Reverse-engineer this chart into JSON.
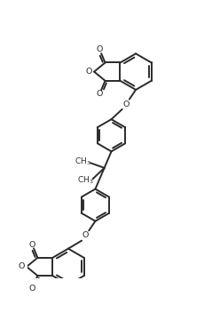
{
  "background_color": "#ffffff",
  "line_color": "#2a2a2a",
  "line_width": 1.4,
  "fig_width": 2.48,
  "fig_height": 3.52,
  "dpi": 100,
  "xlim": [
    0,
    8.5
  ],
  "ylim": [
    0,
    12.0
  ]
}
